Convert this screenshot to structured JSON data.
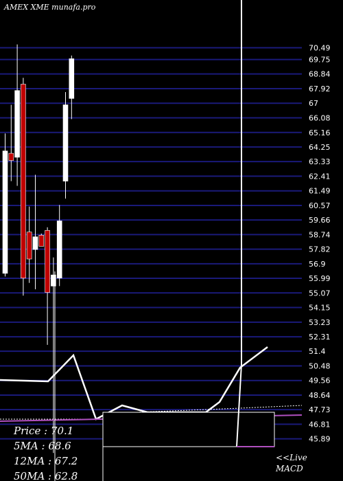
{
  "title": "AMEX  XME munafa.pro",
  "chart_data": {
    "type": "candlestick",
    "title": "AMEX  XME munafa.pro",
    "price_ticks": [
      70.49,
      69.75,
      68.84,
      67.92,
      67,
      66.08,
      65.16,
      64.25,
      63.33,
      62.41,
      61.49,
      60.57,
      59.66,
      58.74,
      57.82,
      56.9,
      55.99,
      55.07,
      54.15,
      53.23,
      52.31,
      51.4,
      50.48,
      49.56,
      48.64,
      47.73,
      46.81,
      45.89
    ],
    "ylim": [
      45.4,
      70.9
    ],
    "candles": [
      {
        "open": 56.3,
        "close": 64.0,
        "high": 65.1,
        "low": 56.1,
        "color": "white"
      },
      {
        "open": 63.85,
        "close": 63.4,
        "high": 66.9,
        "low": 62.1,
        "color": "red"
      },
      {
        "open": 63.6,
        "close": 67.8,
        "high": 70.7,
        "low": 61.8,
        "color": "white"
      },
      {
        "open": 68.2,
        "close": 56.0,
        "high": 68.6,
        "low": 54.9,
        "color": "red"
      },
      {
        "open": 58.9,
        "close": 57.2,
        "high": 60.5,
        "low": 55.7,
        "color": "red"
      },
      {
        "open": 57.8,
        "close": 58.6,
        "high": 62.5,
        "low": 55.3,
        "color": "white"
      },
      {
        "open": 58.7,
        "close": 58.0,
        "high": 58.8,
        "low": 58.0,
        "color": "red"
      },
      {
        "open": 59.0,
        "close": 55.1,
        "high": 59.2,
        "low": 51.8,
        "color": "red"
      },
      {
        "open": 55.5,
        "close": 56.2,
        "high": 57.3,
        "low": 45.0,
        "color": "white"
      },
      {
        "open": 56.0,
        "close": 59.6,
        "high": 60.6,
        "low": 55.5,
        "color": "white"
      },
      {
        "open": 62.1,
        "close": 66.9,
        "high": 67.7,
        "low": 61.0,
        "color": "white"
      },
      {
        "open": 67.3,
        "close": 69.8,
        "high": 70.0,
        "low": 66.0,
        "color": "white"
      }
    ],
    "legend": [
      {
        "label": "Price",
        "value": "70.1"
      },
      {
        "label": "5MA",
        "value": "68.6"
      },
      {
        "label": "12MA",
        "value": "67.2"
      },
      {
        "label": "50MA",
        "value": "62.8"
      }
    ],
    "macd_label": "<<Live\nMACD",
    "colors": {
      "background": "#000000",
      "grid": "#1a1a7a",
      "bull": "#ffffff",
      "bear": "#c00000",
      "macd": "#ffffff",
      "signal": "#b050c0"
    }
  }
}
